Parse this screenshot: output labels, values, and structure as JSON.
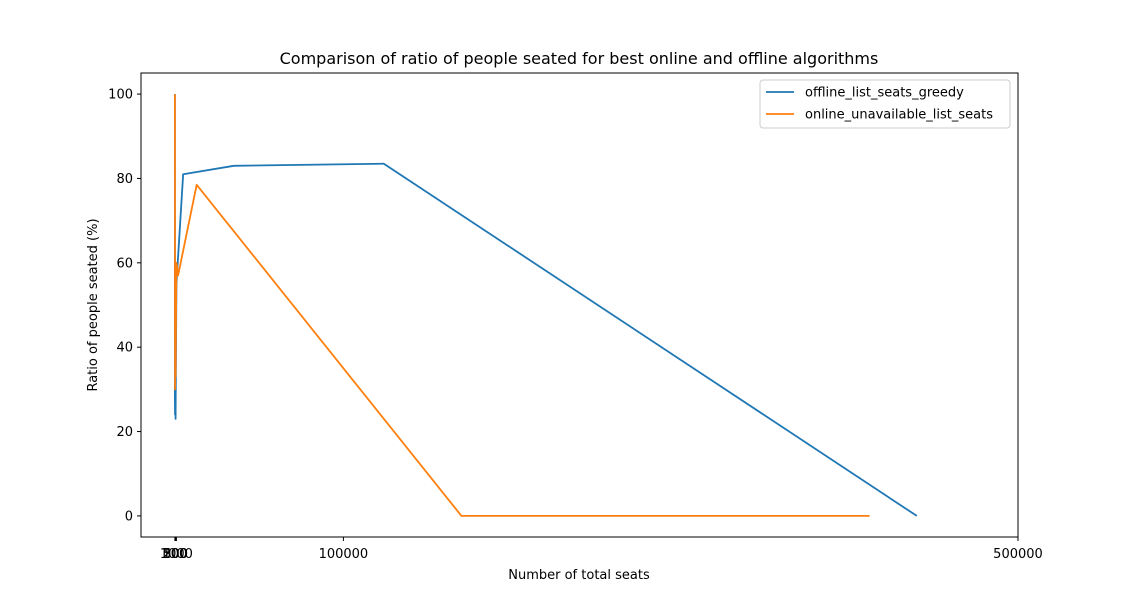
{
  "chart_data": {
    "type": "line",
    "title": "Comparison of ratio of people seated for best online and offline algorithms",
    "xlabel": "Number of total seats",
    "ylabel": "Ratio of people seated (%)",
    "xlim": [
      -20000,
      500000
    ],
    "ylim": [
      -5,
      105
    ],
    "x_ticks": [
      {
        "value": 100,
        "label": "100"
      },
      {
        "value": 200,
        "label": "200"
      },
      {
        "value": 300,
        "label": "300"
      },
      {
        "value": 500,
        "label": "500"
      },
      {
        "value": 1000,
        "label": "1000"
      },
      {
        "value": 100000,
        "label": "100000"
      },
      {
        "value": 500000,
        "label": "500000"
      }
    ],
    "y_ticks": [
      {
        "value": 0,
        "label": "0"
      },
      {
        "value": 20,
        "label": "20"
      },
      {
        "value": 40,
        "label": "40"
      },
      {
        "value": 60,
        "label": "60"
      },
      {
        "value": 80,
        "label": "80"
      },
      {
        "value": 100,
        "label": "100"
      }
    ],
    "legend_position": "top-right",
    "series": [
      {
        "name": "offline_list_seats_greedy",
        "color": "#1f77b4",
        "points": [
          [
            100,
            100
          ],
          [
            100,
            28
          ],
          [
            200,
            24
          ],
          [
            300,
            40
          ],
          [
            500,
            23
          ],
          [
            1000,
            55
          ],
          [
            5000,
            81
          ],
          [
            35000,
            83
          ],
          [
            124000,
            83.5
          ],
          [
            440000,
            0
          ]
        ]
      },
      {
        "name": "online_unavailable_list_seats",
        "color": "#ff7f0e",
        "points": [
          [
            100,
            100
          ],
          [
            100,
            95
          ],
          [
            200,
            30
          ],
          [
            300,
            38
          ],
          [
            500,
            33
          ],
          [
            1000,
            60
          ],
          [
            2000,
            57
          ],
          [
            13000,
            78.5
          ],
          [
            170000,
            0
          ],
          [
            412000,
            0
          ]
        ]
      }
    ]
  }
}
